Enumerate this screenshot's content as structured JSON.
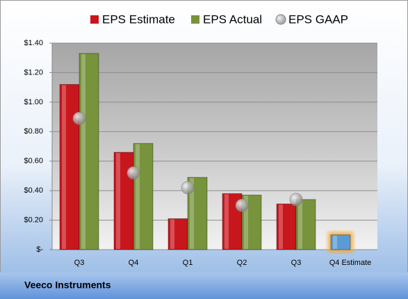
{
  "chart_data": {
    "type": "bar",
    "footer": "Veeco Instruments",
    "categories": [
      "Q3",
      "Q4",
      "Q1",
      "Q2",
      "Q3",
      "Q4 Estimate"
    ],
    "series": [
      {
        "name": "EPS Estimate",
        "color": "#c8161d",
        "point_colors": [
          "#c8161d",
          "#c8161d",
          "#c8161d",
          "#c8161d",
          "#c8161d",
          "#5b9bd5"
        ],
        "values": [
          1.12,
          0.66,
          0.21,
          0.38,
          0.31,
          0.1
        ]
      },
      {
        "name": "EPS Actual",
        "color": "#77933c",
        "values": [
          1.33,
          0.72,
          0.49,
          0.37,
          0.34,
          null
        ]
      },
      {
        "name": "EPS GAAP",
        "color": "#a6a6a6",
        "marker": "bubble",
        "values": [
          0.89,
          0.52,
          0.42,
          0.3,
          0.34,
          null
        ]
      }
    ],
    "ylim": [
      0,
      1.4
    ],
    "yticks": [
      {
        "value": 0,
        "label": "$-"
      },
      {
        "value": 0.2,
        "label": "$0.20"
      },
      {
        "value": 0.4,
        "label": "$0.40"
      },
      {
        "value": 0.6,
        "label": "$0.60"
      },
      {
        "value": 0.8,
        "label": "$0.80"
      },
      {
        "value": 1.0,
        "label": "$1.00"
      },
      {
        "value": 1.2,
        "label": "$1.20"
      },
      {
        "value": 1.4,
        "label": "$1.40"
      }
    ],
    "grid": true
  }
}
